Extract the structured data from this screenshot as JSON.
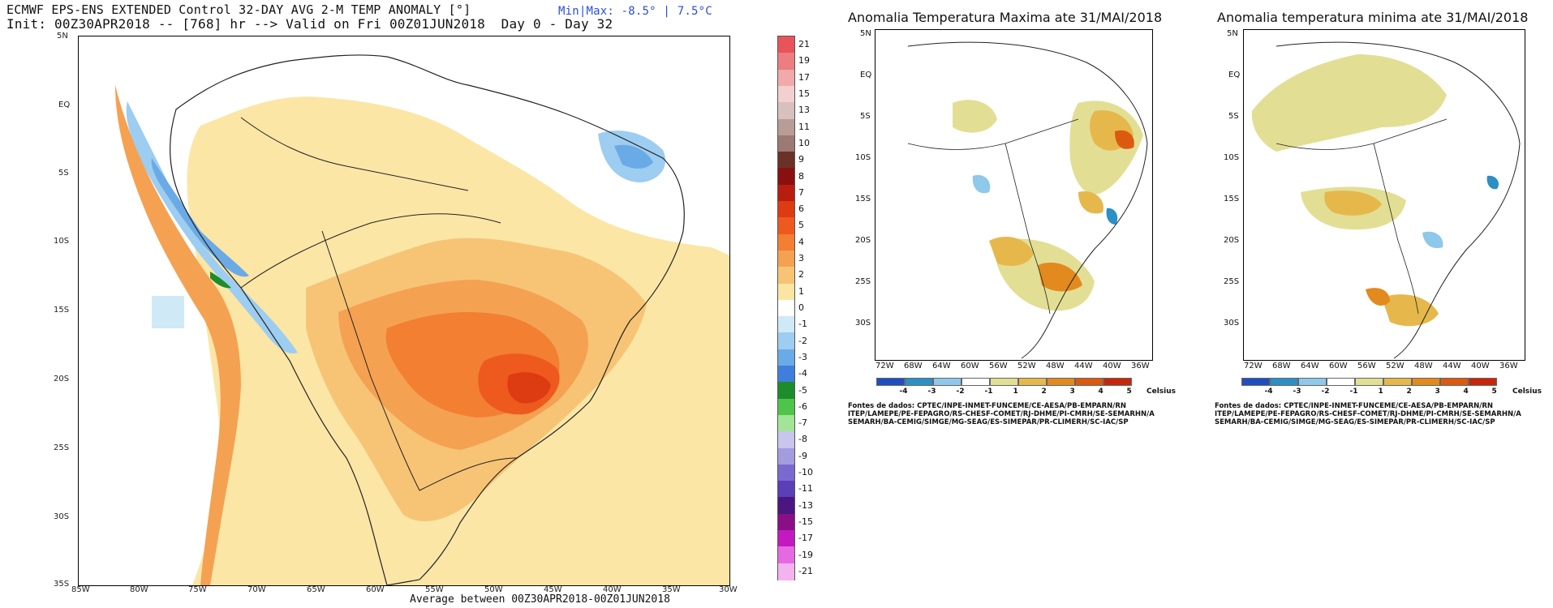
{
  "main_map": {
    "header_line1": "ECMWF EPS-ENS EXTENDED Control 32-DAY AVG 2-M TEMP ANOMALY [°]",
    "header_line2": "Init: 00Z30APR2018 -- [768] hr --> Valid on Fri 00Z01JUN2018  Day 0 - Day 32",
    "minmax": "Min|Max: -8.5° | 7.5°C",
    "footer": "Average between 00Z30APR2018-00Z01JUN2018",
    "lat_ticks": [
      "5N",
      "EQ",
      "5S",
      "10S",
      "15S",
      "20S",
      "25S",
      "30S",
      "35S"
    ],
    "lon_ticks": [
      "85W",
      "80W",
      "75W",
      "70W",
      "65W",
      "60W",
      "55W",
      "50W",
      "45W",
      "40W",
      "35W",
      "30W"
    ]
  },
  "colorbar": {
    "levels": [
      "21",
      "19",
      "17",
      "15",
      "13",
      "11",
      "10",
      "9",
      "8",
      "7",
      "6",
      "5",
      "4",
      "3",
      "2",
      "1",
      "0",
      "-1",
      "-2",
      "-3",
      "-4",
      "-5",
      "-6",
      "-7",
      "-8",
      "-9",
      "-10",
      "-11",
      "-13",
      "-15",
      "-17",
      "-19",
      "-21"
    ],
    "colors": [
      "#e9545a",
      "#ec7d80",
      "#f1a9aa",
      "#f4cfcf",
      "#d8c0bc",
      "#b99c96",
      "#9a7a73",
      "#6b3128",
      "#8a1010",
      "#b81e0e",
      "#dd3b12",
      "#ee5a1e",
      "#f27f32",
      "#f5a152",
      "#f7c475",
      "#fbe5a2",
      "#ffffff",
      "#cfe9f7",
      "#9dcdf0",
      "#6aaae6",
      "#3f7fdb",
      "#1c8d2a",
      "#4fc44b",
      "#a2e596",
      "#c8c5ee",
      "#a39cdf",
      "#7a6ad0",
      "#5a3fb8",
      "#4b1680",
      "#8a0f86",
      "#c21ac0",
      "#e56ae2",
      "#f4b3ee"
    ]
  },
  "max_map": {
    "title": "Anomalia Temperatura Maxima ate 31/MAI/2018",
    "lat_ticks": [
      "5N",
      "EQ",
      "5S",
      "10S",
      "15S",
      "20S",
      "25S",
      "30S"
    ],
    "lon_ticks": [
      "72W",
      "68W",
      "64W",
      "60W",
      "56W",
      "52W",
      "48W",
      "44W",
      "40W",
      "36W"
    ],
    "scale_labels": [
      "-4",
      "-3",
      "-2",
      "-1",
      "1",
      "2",
      "3",
      "4",
      "5"
    ],
    "unit": "Celsius",
    "sources": "Fontes de dados: CPTEC/INPE-INMET-FUNCEME/CE-AESA/PB-EMPARN/RN\nITEP/LAMEPE/PE-FEPAGRO/RS-CHESF-COMET/RJ-DHME/PI-CMRH/SE-SEMARHN/A\nSEMARH/BA-CEMIG/SIMGE/MG-SEAG/ES-SIMEPAR/PR-CLIMERH/SC-IAC/SP"
  },
  "min_map": {
    "title": "Anomalia temperatura minima ate 31/MAI/2018",
    "lat_ticks": [
      "5N",
      "EQ",
      "5S",
      "10S",
      "15S",
      "20S",
      "25S",
      "30S"
    ],
    "lon_ticks": [
      "72W",
      "68W",
      "64W",
      "60W",
      "56W",
      "52W",
      "48W",
      "44W",
      "40W",
      "36W"
    ],
    "scale_labels": [
      "-4",
      "-3",
      "-2",
      "-1",
      "1",
      "2",
      "3",
      "4",
      "5"
    ],
    "unit": "Celsius",
    "sources": "Fontes de dados: CPTEC/INPE-INMET-FUNCEME/CE-AESA/PB-EMPARN/RN\nITEP/LAMEPE/PE-FEPAGRO/RS-CHESF-COMET/RJ-DHME/PI-CMRH/SE-SEMARHN/A\nSEMARH/BA-CEMIG/SIMGE/MG-SEAG/ES-SIMEPAR/PR-CLIMERH/SC-IAC/SP"
  },
  "scale_colors": [
    "#1f4fbf",
    "#2c8fc5",
    "#8ec8ea",
    "#ffffff",
    "#e2df95",
    "#e6b84c",
    "#e38a1e",
    "#dc5a10",
    "#c8260a"
  ]
}
